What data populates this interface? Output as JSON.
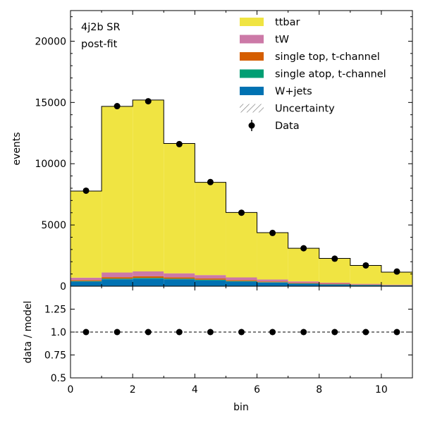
{
  "chart_data": {
    "type": "bar",
    "stacked": true,
    "annotations": [
      "4j2b SR",
      "post-fit"
    ],
    "xlabel": "bin",
    "xlim": [
      0,
      11
    ],
    "bin_edges": [
      0,
      1,
      2,
      3,
      4,
      5,
      6,
      7,
      8,
      9,
      10,
      11
    ],
    "x_ticks": [
      "0",
      "2",
      "4",
      "6",
      "8",
      "10"
    ],
    "main": {
      "ylabel": "events",
      "ylim": [
        0,
        22500
      ],
      "y_ticks": [
        "0",
        "5000",
        "10000",
        "15000",
        "20000"
      ],
      "series": [
        {
          "name": "W+jets",
          "color": "#0072b2",
          "values": [
            380,
            560,
            620,
            560,
            480,
            380,
            300,
            200,
            140,
            90,
            60
          ]
        },
        {
          "name": "single atop, t-channel",
          "color": "#009e73",
          "values": [
            40,
            60,
            60,
            55,
            50,
            40,
            30,
            25,
            20,
            15,
            10
          ]
        },
        {
          "name": "single top, t-channel",
          "color": "#d55e00",
          "values": [
            80,
            120,
            130,
            110,
            100,
            80,
            60,
            50,
            40,
            30,
            20
          ]
        },
        {
          "name": "tW",
          "color": "#cc79a7",
          "values": [
            200,
            380,
            400,
            330,
            280,
            220,
            160,
            120,
            90,
            60,
            40
          ]
        },
        {
          "name": "ttbar",
          "color": "#f0e442",
          "values": [
            7070,
            13560,
            13990,
            10595,
            7570,
            5300,
            3820,
            2705,
            1980,
            1505,
            1020
          ]
        }
      ],
      "data": {
        "name": "Data",
        "x": [
          0.5,
          1.5,
          2.5,
          3.5,
          4.5,
          5.5,
          6.5,
          7.5,
          8.5,
          9.5,
          10.5
        ],
        "values": [
          7800,
          14700,
          15100,
          11600,
          8500,
          6000,
          4350,
          3100,
          2250,
          1700,
          1200
        ]
      },
      "legend_order": [
        "ttbar",
        "tW",
        "single top, t-channel",
        "single atop, t-channel",
        "W+jets",
        "Uncertainty",
        "Data"
      ],
      "legend_placement": "top-right"
    },
    "ratio": {
      "ylabel": "data / model",
      "ylim": [
        0.5,
        1.5
      ],
      "y_ticks": [
        "0.5",
        "0.75",
        "1.0",
        "1.25"
      ],
      "y_tick_values": [
        0.5,
        0.75,
        1.0,
        1.25
      ],
      "reference": 1.0,
      "values": [
        1.0,
        1.0,
        1.0,
        1.0,
        1.0,
        1.0,
        1.0,
        1.0,
        1.0,
        1.0,
        1.0
      ]
    }
  }
}
